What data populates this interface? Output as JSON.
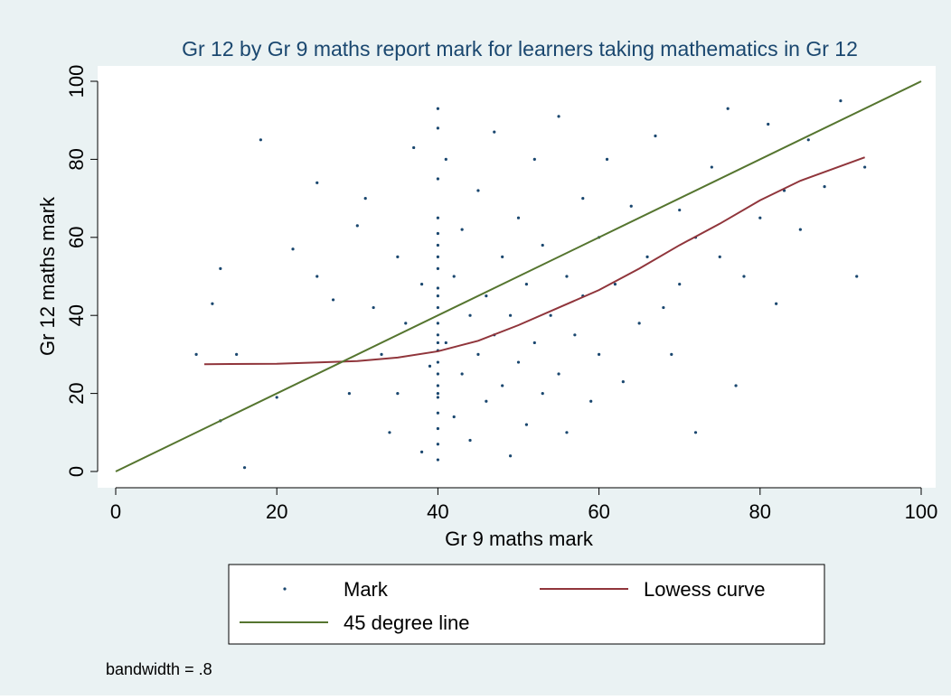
{
  "chart_data": {
    "type": "scatter",
    "title": "Gr 12 by Gr 9 maths report mark for learners taking mathematics in Gr 12",
    "x_label": "Gr 9 maths mark",
    "y_label": "Gr 12 maths mark",
    "xlim": [
      0,
      100
    ],
    "ylim": [
      0,
      100
    ],
    "xticks": [
      0,
      20,
      40,
      60,
      80,
      100
    ],
    "yticks": [
      0,
      20,
      40,
      60,
      80,
      100
    ],
    "legend": "bottom",
    "note": "bandwidth = .8",
    "series": [
      {
        "name": "Mark",
        "kind": "points",
        "color": "#1a476f",
        "x": [
          40,
          40,
          40,
          40,
          40,
          40,
          40,
          40,
          40,
          40,
          40,
          40,
          40,
          40,
          40,
          40,
          40,
          40,
          40,
          40,
          40,
          40,
          40,
          40,
          18,
          12,
          13,
          16,
          10,
          13,
          15,
          20,
          22,
          25,
          25,
          27,
          29,
          30,
          31,
          32,
          33,
          34,
          35,
          35,
          36,
          37,
          38,
          38,
          39,
          41,
          41,
          42,
          42,
          43,
          43,
          44,
          44,
          45,
          45,
          46,
          46,
          47,
          47,
          48,
          48,
          49,
          49,
          50,
          50,
          51,
          51,
          52,
          52,
          53,
          53,
          54,
          55,
          55,
          56,
          56,
          57,
          58,
          58,
          59,
          60,
          60,
          61,
          62,
          63,
          64,
          65,
          66,
          67,
          68,
          69,
          70,
          70,
          72,
          72,
          74,
          75,
          76,
          77,
          78,
          80,
          81,
          82,
          83,
          85,
          86,
          88,
          90,
          92,
          93
        ],
        "y": [
          93,
          88,
          75,
          65,
          58,
          52,
          47,
          42,
          38,
          35,
          31,
          28,
          25,
          22,
          19,
          15,
          11,
          7,
          3,
          45,
          33,
          20,
          61,
          55,
          85,
          43,
          52,
          1,
          30,
          13,
          30,
          19,
          57,
          74,
          50,
          44,
          20,
          63,
          70,
          42,
          30,
          10,
          55,
          20,
          38,
          83,
          48,
          5,
          27,
          80,
          33,
          14,
          50,
          25,
          62,
          40,
          8,
          30,
          72,
          18,
          45,
          87,
          35,
          55,
          22,
          4,
          40,
          65,
          28,
          48,
          12,
          33,
          80,
          20,
          58,
          40,
          91,
          25,
          50,
          10,
          35,
          70,
          45,
          18,
          60,
          30,
          80,
          48,
          23,
          68,
          38,
          55,
          86,
          42,
          30,
          67,
          48,
          10,
          60,
          78,
          55,
          93,
          22,
          50,
          65,
          89,
          43,
          72,
          62,
          85,
          73,
          95,
          50,
          78
        ]
      },
      {
        "name": "Lowess curve",
        "kind": "line",
        "color": "#90353b",
        "x": [
          11,
          20,
          30,
          35,
          40,
          45,
          50,
          55,
          60,
          65,
          70,
          75,
          80,
          85,
          93
        ],
        "y": [
          27.5,
          27.6,
          28.3,
          29.2,
          30.8,
          33.5,
          37.5,
          42,
          46.5,
          52,
          58,
          63.5,
          69.5,
          74.5,
          80.5
        ]
      },
      {
        "name": "45 degree line",
        "kind": "line",
        "color": "#55752f",
        "x": [
          0,
          100
        ],
        "y": [
          0,
          100
        ]
      }
    ]
  }
}
